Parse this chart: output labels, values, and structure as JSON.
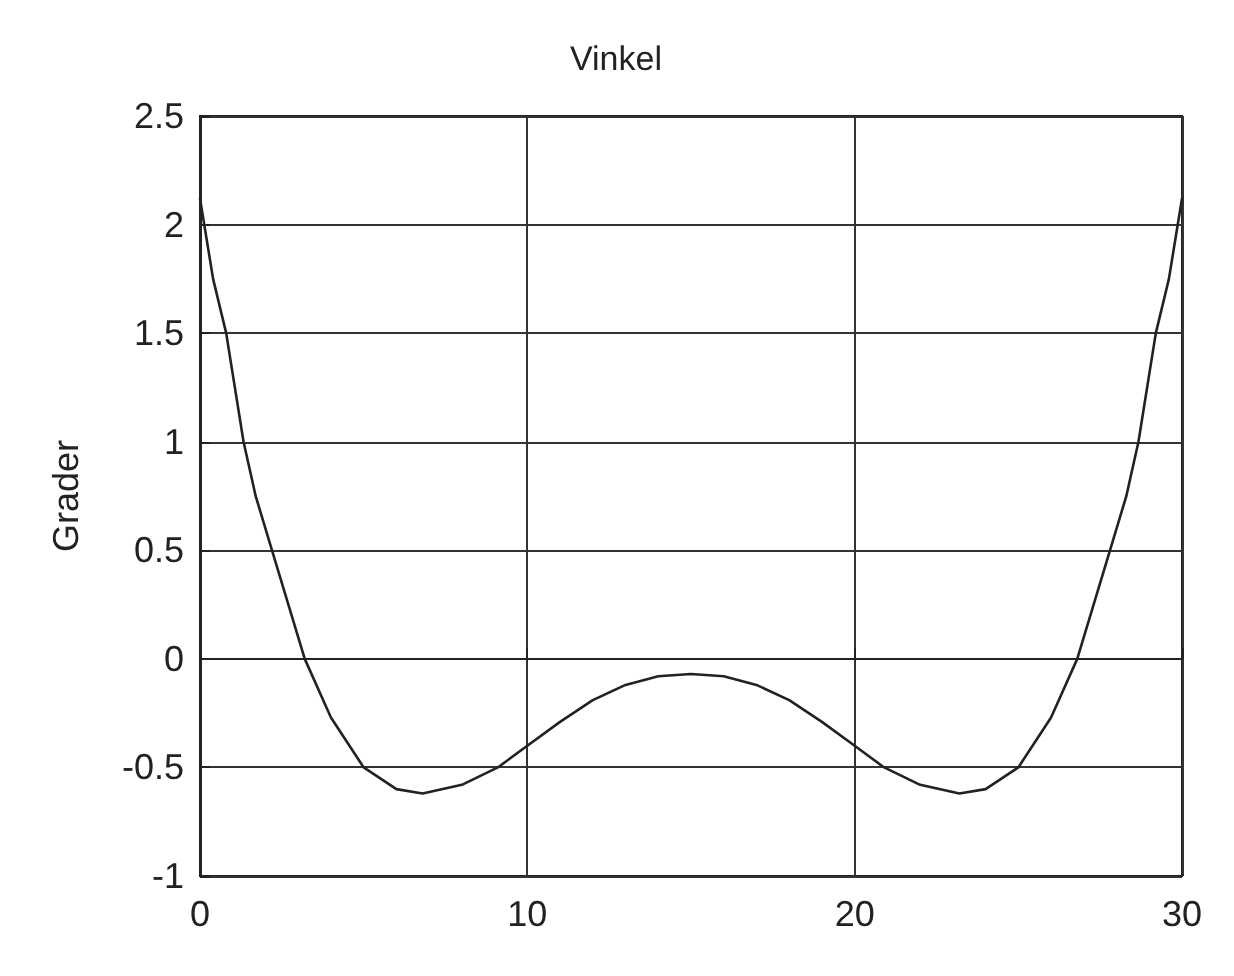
{
  "chart_data": {
    "type": "line",
    "title": "Vinkel",
    "ylabel": "Grader",
    "series": [
      {
        "color": "#222222",
        "x": [
          0,
          0.4,
          0.8,
          1.33,
          1.7,
          2.2,
          2.7,
          3.2,
          4,
          5,
          6,
          6.8,
          8,
          9.1,
          10,
          11,
          12,
          13,
          14,
          15,
          16,
          17,
          18,
          19,
          20,
          20.9,
          22,
          23.2,
          24,
          25,
          26,
          26.8,
          27.3,
          27.8,
          28.3,
          28.67,
          29.2,
          29.6,
          30
        ],
        "values": [
          2.12,
          1.75,
          1.5,
          1.0,
          0.75,
          0.5,
          0.25,
          0,
          -0.27,
          -0.5,
          -0.6,
          -0.62,
          -0.58,
          -0.5,
          -0.4,
          -0.29,
          -0.19,
          -0.12,
          -0.08,
          -0.07,
          -0.08,
          -0.12,
          -0.19,
          -0.29,
          -0.4,
          -0.5,
          -0.58,
          -0.62,
          -0.6,
          -0.5,
          -0.27,
          0,
          0.25,
          0.5,
          0.75,
          1.0,
          1.5,
          1.75,
          2.12
        ]
      }
    ],
    "xlim": [
      0,
      30
    ],
    "xticks": [
      0,
      10,
      20,
      30
    ],
    "ylim": [
      -1,
      2.5
    ],
    "yticks": [
      -1,
      -0.5,
      0,
      0.5,
      1,
      1.5,
      2,
      2.5
    ],
    "grid": true,
    "marker": "none",
    "line_style": "solid"
  }
}
